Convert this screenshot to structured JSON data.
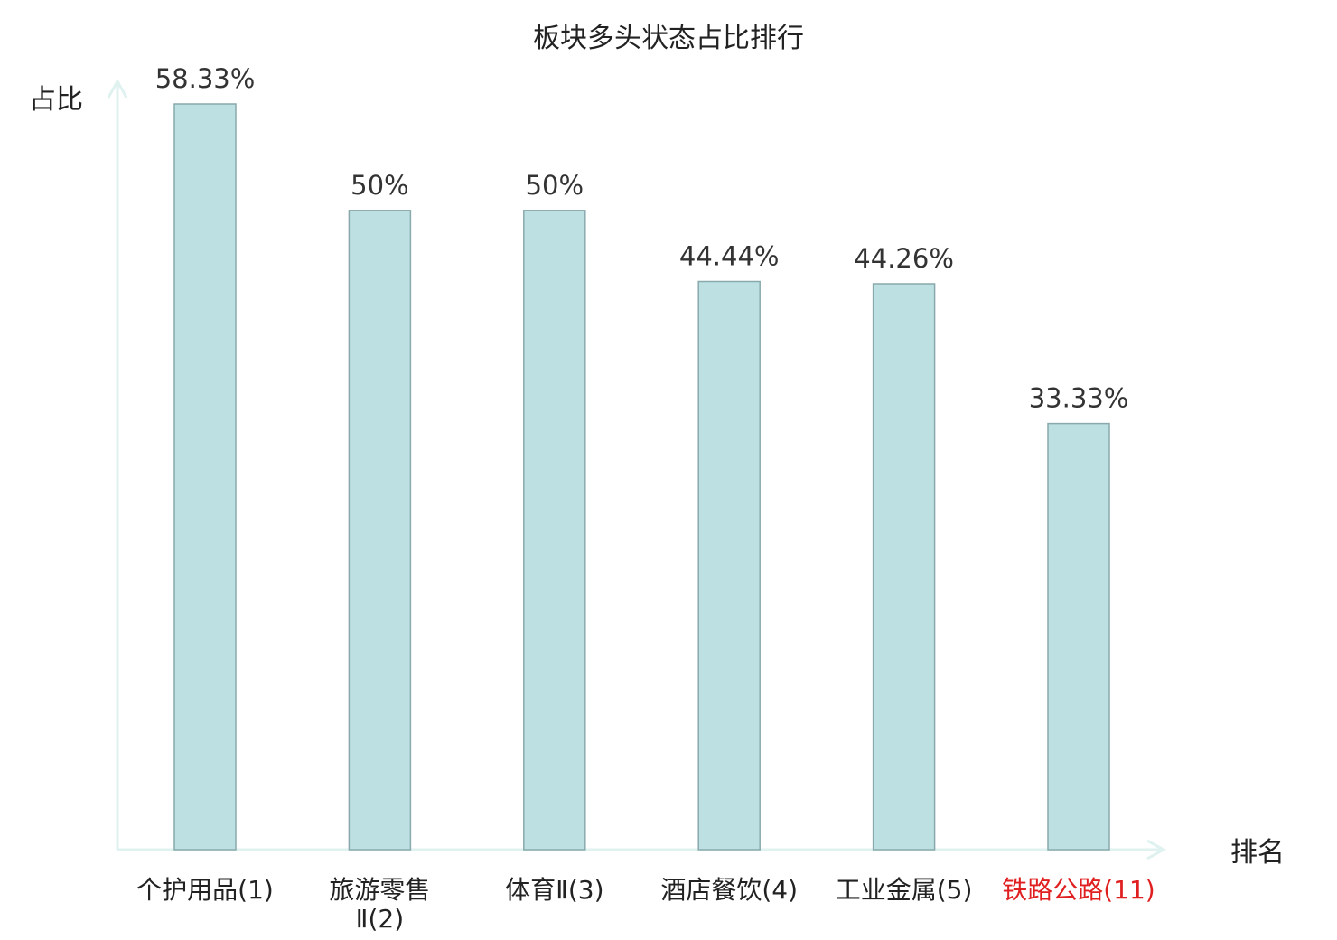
{
  "chart_data": {
    "type": "bar",
    "title": "板块多头状态占比排行",
    "ylabel": "占比",
    "xlabel": "排名",
    "ylim": [
      0,
      60
    ],
    "grid": false,
    "categories": [
      {
        "name": "个护用品",
        "rank": "(1)",
        "lines": [
          "个护用品(1)"
        ]
      },
      {
        "name": "旅游零售Ⅱ",
        "rank": "(2)",
        "lines": [
          "旅游零售",
          "Ⅱ(2)"
        ]
      },
      {
        "name": "体育Ⅱ",
        "rank": "(3)",
        "lines": [
          "体育Ⅱ(3)"
        ]
      },
      {
        "name": "酒店餐饮",
        "rank": "(4)",
        "lines": [
          "酒店餐饮(4)"
        ]
      },
      {
        "name": "工业金属",
        "rank": "(5)",
        "lines": [
          "工业金属(5)"
        ]
      },
      {
        "name": "铁路公路",
        "rank": "(11)",
        "lines": [
          "铁路公路(11)"
        ],
        "highlight": true
      }
    ],
    "values": [
      58.33,
      50,
      50,
      44.44,
      44.26,
      33.33
    ],
    "value_labels": [
      "58.33%",
      "50%",
      "50%",
      "44.44%",
      "44.26%",
      "33.33%"
    ],
    "colors": {
      "bar_fill": "#bde1e3",
      "bar_stroke": "#8aa9ac",
      "axis": "#dff2ef",
      "text": "#333333",
      "highlight": "#e02020"
    }
  }
}
